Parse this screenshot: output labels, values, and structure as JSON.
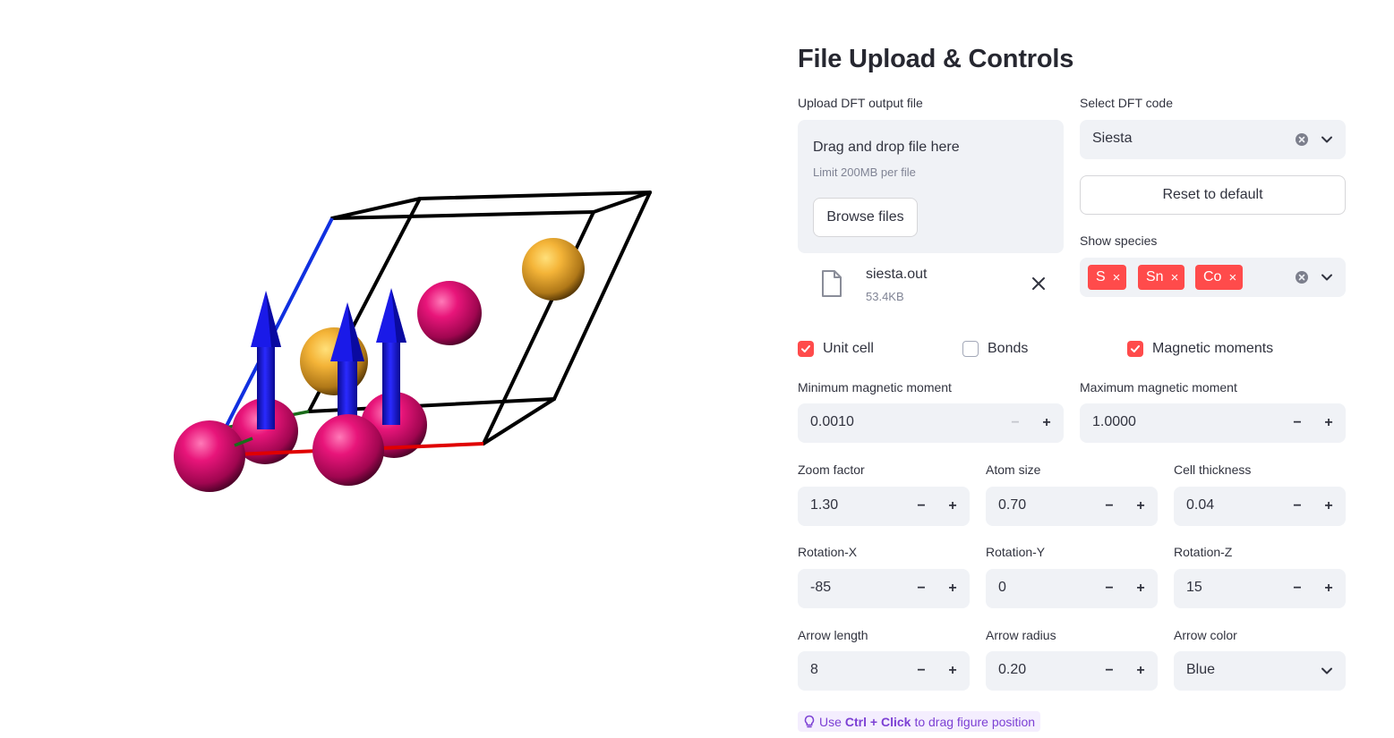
{
  "controls": {
    "title": "File Upload & Controls",
    "upload": {
      "label": "Upload DFT output file",
      "drop_text": "Drag and drop file here",
      "limit_text": "Limit 200MB per file",
      "browse_label": "Browse files",
      "file_name": "siesta.out",
      "file_size": "53.4KB"
    },
    "dft_code": {
      "label": "Select DFT code",
      "value": "Siesta"
    },
    "reset_label": "Reset to default",
    "species": {
      "label": "Show species",
      "tags": [
        "S",
        "Sn",
        "Co"
      ]
    },
    "checkboxes": [
      {
        "label": "Unit cell",
        "checked": true
      },
      {
        "label": "Bonds",
        "checked": false
      },
      {
        "label": "Magnetic moments",
        "checked": true
      }
    ],
    "min_moment": {
      "label": "Minimum magnetic moment",
      "value": "0.0010"
    },
    "max_moment": {
      "label": "Maximum magnetic moment",
      "value": "1.0000"
    },
    "zoom": {
      "label": "Zoom factor",
      "value": "1.30"
    },
    "atom_size": {
      "label": "Atom size",
      "value": "0.70"
    },
    "cell_thickness": {
      "label": "Cell thickness",
      "value": "0.04"
    },
    "rot_x": {
      "label": "Rotation-X",
      "value": "-85"
    },
    "rot_y": {
      "label": "Rotation-Y",
      "value": "0"
    },
    "rot_z": {
      "label": "Rotation-Z",
      "value": "15"
    },
    "arrow_length": {
      "label": "Arrow length",
      "value": "8"
    },
    "arrow_radius": {
      "label": "Arrow radius",
      "value": "0.20"
    },
    "arrow_color": {
      "label": "Arrow color",
      "value": "Blue"
    },
    "hint": {
      "prefix": "Use",
      "keys": "Ctrl + Click",
      "suffix": "to drag figure position"
    },
    "symbols": {
      "minus": "−",
      "plus": "+",
      "tag_remove": "×"
    }
  },
  "colors": {
    "accent": "#ff4b4b",
    "input_bg": "#f0f2f6",
    "cell_edge": "#000000",
    "axis_a": "#e00000",
    "axis_b": "#1a6b1a",
    "axis_c": "#1030e0",
    "arrow": "#1010e0",
    "atom_magenta": "#e0106e",
    "atom_gold": "#f0b030"
  }
}
